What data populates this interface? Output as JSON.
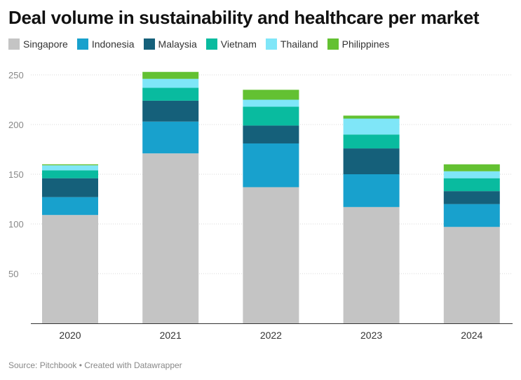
{
  "chart_data": {
    "type": "bar",
    "stacked": true,
    "title": "Deal volume in sustainability and healthcare per market",
    "categories": [
      "2020",
      "2021",
      "2022",
      "2023",
      "2024"
    ],
    "series": [
      {
        "name": "Singapore",
        "color": "#c4c4c4",
        "values": [
          109,
          171,
          137,
          117,
          97
        ]
      },
      {
        "name": "Indonesia",
        "color": "#18a1cd",
        "values": [
          18,
          32,
          44,
          33,
          23
        ]
      },
      {
        "name": "Malaysia",
        "color": "#15607a",
        "values": [
          19,
          21,
          18,
          26,
          13
        ]
      },
      {
        "name": "Vietnam",
        "color": "#09bb9f",
        "values": [
          8,
          13,
          19,
          14,
          13
        ]
      },
      {
        "name": "Thailand",
        "color": "#7fe6f8",
        "values": [
          5,
          9,
          7,
          16,
          7
        ]
      },
      {
        "name": "Philippines",
        "color": "#63c132",
        "values": [
          1,
          7,
          10,
          3,
          7
        ]
      }
    ],
    "ylim": [
      0,
      250
    ],
    "yticks": [
      50,
      100,
      150,
      200,
      250
    ],
    "grid": true,
    "legend": "top-left"
  },
  "source_text": "Source: Pitchbook • Created with Datawrapper"
}
